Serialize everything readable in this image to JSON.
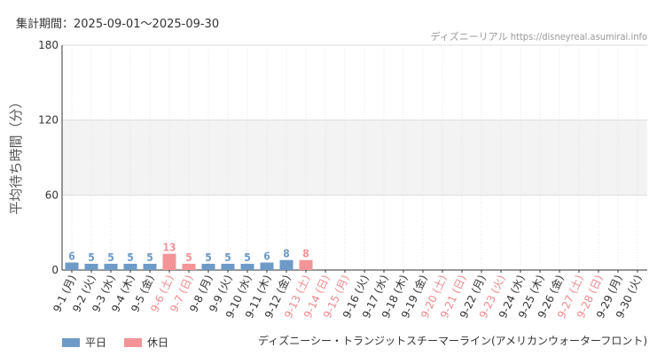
{
  "header": {
    "period_label": "集計期間：2025-09-01～2025-09-30",
    "source": "ディズニーリアル https://disneyreal.asumirai.info"
  },
  "legend": {
    "weekday_label": "平日",
    "holiday_label": "休日"
  },
  "footer": {
    "attraction": "ディズニーシー・トランジットスチーマーライン(アメリカンウォーターフロント)"
  },
  "colors": {
    "weekday": "#6e9ac8",
    "holiday": "#f49497",
    "band": "#f3f3f3",
    "grid": "#dddddd",
    "axis": "#333333"
  },
  "chart_data": {
    "type": "bar",
    "ylabel": "平均待ち時間（分）",
    "ylim": [
      0,
      180
    ],
    "yticks": [
      0,
      60,
      120,
      180
    ],
    "legend_position": "bottom-left",
    "categories": [
      "9-1 (月)",
      "9-2 (火)",
      "9-3 (水)",
      "9-4 (木)",
      "9-5 (金)",
      "9-6 (土)",
      "9-7 (日)",
      "9-8 (月)",
      "9-9 (火)",
      "9-10 (水)",
      "9-11 (木)",
      "9-12 (金)",
      "9-13 (土)",
      "9-14 (日)",
      "9-15 (月)",
      "9-16 (火)",
      "9-17 (水)",
      "9-18 (木)",
      "9-19 (金)",
      "9-20 (土)",
      "9-21 (日)",
      "9-22 (月)",
      "9-23 (火)",
      "9-24 (水)",
      "9-25 (木)",
      "9-26 (金)",
      "9-27 (土)",
      "9-28 (日)",
      "9-29 (月)",
      "9-30 (火)"
    ],
    "holiday_flags": [
      false,
      false,
      false,
      false,
      false,
      true,
      true,
      false,
      false,
      false,
      false,
      false,
      true,
      true,
      true,
      false,
      false,
      false,
      false,
      true,
      true,
      false,
      true,
      false,
      false,
      false,
      true,
      true,
      false,
      false
    ],
    "values": [
      6,
      5,
      5,
      5,
      5,
      13,
      5,
      5,
      5,
      5,
      6,
      8,
      8,
      null,
      null,
      null,
      null,
      null,
      null,
      null,
      null,
      null,
      null,
      null,
      null,
      null,
      null,
      null,
      null,
      null
    ]
  }
}
